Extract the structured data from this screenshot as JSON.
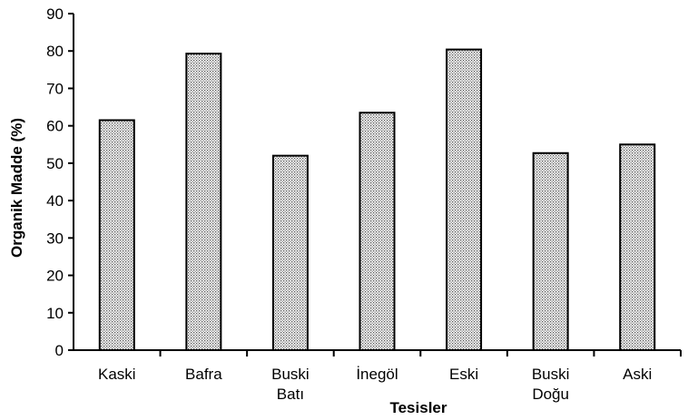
{
  "chart_data": {
    "type": "bar",
    "categories": [
      [
        "Kaski"
      ],
      [
        "Bafra"
      ],
      [
        "Buski",
        "Batı"
      ],
      [
        "İnegöl"
      ],
      [
        "Eski"
      ],
      [
        "Buski",
        "Doğu"
      ],
      [
        "Aski"
      ]
    ],
    "values": [
      61.5,
      79.3,
      52.0,
      63.5,
      80.4,
      52.7,
      55.0
    ],
    "xlabel": "Tesisler",
    "ylabel": "Organik Madde (%)",
    "ylim": [
      0,
      90
    ],
    "yticks": [
      0,
      10,
      20,
      30,
      40,
      50,
      60,
      70,
      80,
      90
    ],
    "grid": false,
    "bar_fill": "dotted gray pattern",
    "bar_color": "#ffffff",
    "dot_color": "#555555",
    "axis_color": "#000000"
  }
}
